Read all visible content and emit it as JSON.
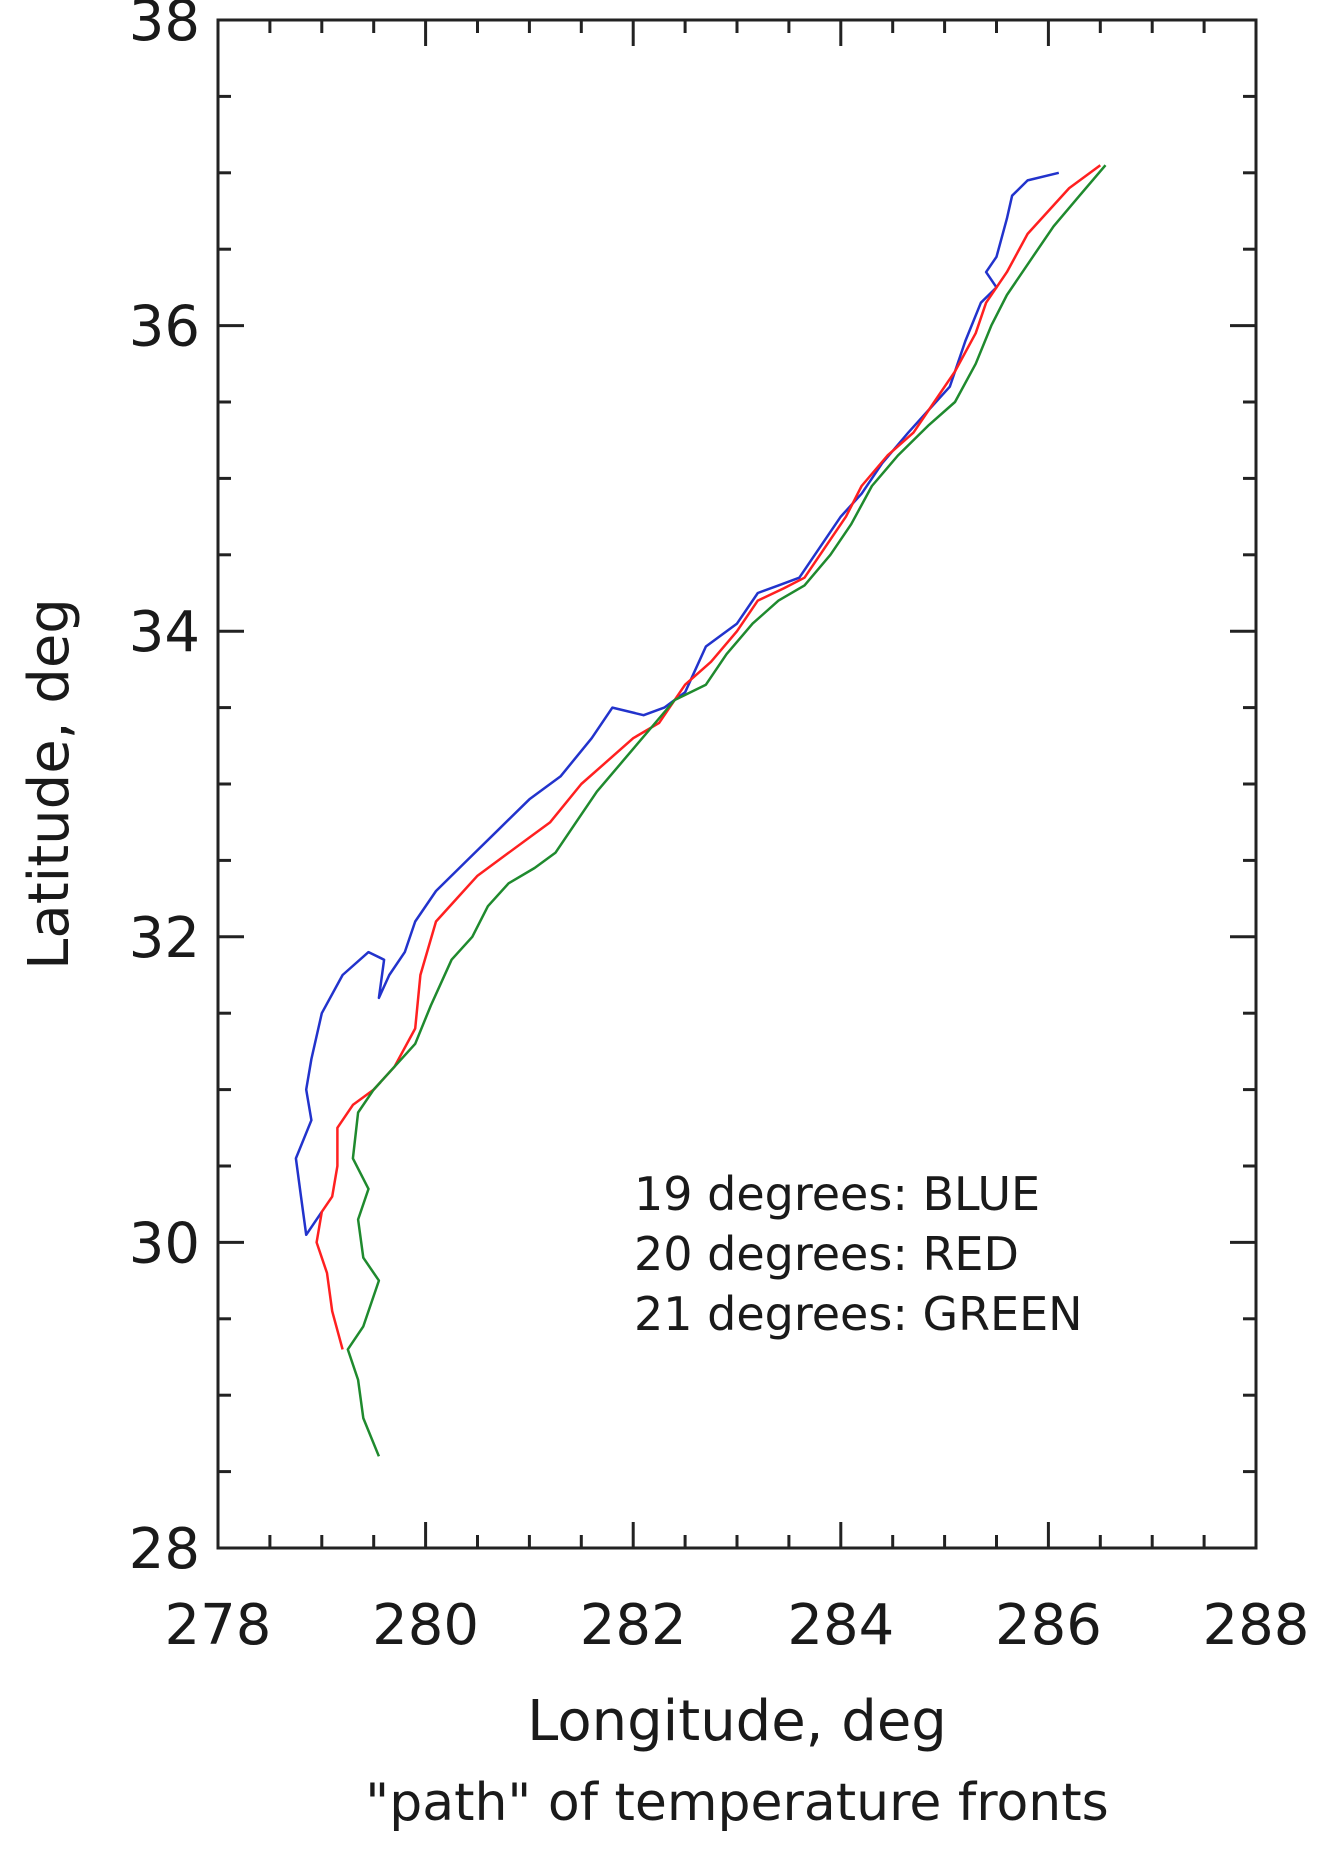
{
  "chart_data": {
    "type": "line",
    "title": "",
    "xlabel": "Longitude, deg",
    "ylabel": "Latitude, deg",
    "caption": "\"path\" of temperature fronts",
    "xlim": [
      278,
      288
    ],
    "ylim": [
      28,
      38
    ],
    "xticks": [
      "278",
      "280",
      "282",
      "284",
      "286",
      "288"
    ],
    "yticks": [
      "28",
      "30",
      "32",
      "34",
      "36",
      "38"
    ],
    "grid": false,
    "legend_position": "lower-right",
    "legend": [
      "19 degrees: BLUE",
      "20 degrees: RED",
      "21 degrees: GREEN"
    ],
    "series": [
      {
        "color": "#2233cc",
        "points": [
          [
            286.1,
            37.0
          ],
          [
            285.8,
            36.95
          ],
          [
            285.65,
            36.85
          ],
          [
            285.6,
            36.7
          ],
          [
            285.5,
            36.45
          ],
          [
            285.4,
            36.35
          ],
          [
            285.5,
            36.25
          ],
          [
            285.35,
            36.15
          ],
          [
            285.2,
            35.9
          ],
          [
            285.05,
            35.6
          ],
          [
            284.85,
            35.45
          ],
          [
            284.65,
            35.3
          ],
          [
            284.4,
            35.1
          ],
          [
            284.2,
            34.9
          ],
          [
            284.0,
            34.75
          ],
          [
            283.8,
            34.55
          ],
          [
            283.6,
            34.35
          ],
          [
            283.4,
            34.3
          ],
          [
            283.2,
            34.25
          ],
          [
            283.0,
            34.05
          ],
          [
            282.7,
            33.9
          ],
          [
            282.5,
            33.6
          ],
          [
            282.3,
            33.5
          ],
          [
            282.1,
            33.45
          ],
          [
            281.8,
            33.5
          ],
          [
            281.6,
            33.3
          ],
          [
            281.3,
            33.05
          ],
          [
            281.0,
            32.9
          ],
          [
            280.7,
            32.7
          ],
          [
            280.4,
            32.5
          ],
          [
            280.1,
            32.3
          ],
          [
            279.9,
            32.1
          ],
          [
            279.8,
            31.9
          ],
          [
            279.65,
            31.75
          ],
          [
            279.55,
            31.6
          ],
          [
            279.6,
            31.85
          ],
          [
            279.45,
            31.9
          ],
          [
            279.2,
            31.75
          ],
          [
            279.0,
            31.5
          ],
          [
            278.9,
            31.2
          ],
          [
            278.85,
            31.0
          ],
          [
            278.9,
            30.8
          ],
          [
            278.75,
            30.55
          ],
          [
            278.8,
            30.3
          ],
          [
            278.85,
            30.05
          ],
          [
            279.0,
            30.2
          ]
        ]
      },
      {
        "color": "#ff2020",
        "points": [
          [
            286.5,
            37.05
          ],
          [
            286.2,
            36.9
          ],
          [
            286.0,
            36.75
          ],
          [
            285.8,
            36.6
          ],
          [
            285.6,
            36.35
          ],
          [
            285.4,
            36.15
          ],
          [
            285.3,
            35.95
          ],
          [
            285.1,
            35.7
          ],
          [
            284.9,
            35.5
          ],
          [
            284.7,
            35.3
          ],
          [
            284.45,
            35.15
          ],
          [
            284.2,
            34.95
          ],
          [
            284.05,
            34.75
          ],
          [
            283.85,
            34.55
          ],
          [
            283.65,
            34.35
          ],
          [
            283.45,
            34.28
          ],
          [
            283.2,
            34.2
          ],
          [
            283.0,
            34.0
          ],
          [
            282.75,
            33.8
          ],
          [
            282.5,
            33.65
          ],
          [
            282.25,
            33.4
          ],
          [
            282.0,
            33.3
          ],
          [
            281.75,
            33.15
          ],
          [
            281.5,
            33.0
          ],
          [
            281.2,
            32.75
          ],
          [
            281.0,
            32.65
          ],
          [
            280.8,
            32.55
          ],
          [
            280.5,
            32.4
          ],
          [
            280.3,
            32.25
          ],
          [
            280.1,
            32.1
          ],
          [
            279.95,
            31.75
          ],
          [
            279.9,
            31.4
          ],
          [
            279.7,
            31.15
          ],
          [
            279.5,
            31.0
          ],
          [
            279.3,
            30.9
          ],
          [
            279.15,
            30.75
          ],
          [
            279.15,
            30.5
          ],
          [
            279.1,
            30.3
          ],
          [
            279.0,
            30.2
          ],
          [
            278.95,
            30.0
          ],
          [
            279.05,
            29.8
          ],
          [
            279.1,
            29.55
          ],
          [
            279.2,
            29.3
          ]
        ]
      },
      {
        "color": "#1f8a2e",
        "points": [
          [
            286.55,
            37.05
          ],
          [
            286.3,
            36.85
          ],
          [
            286.05,
            36.65
          ],
          [
            285.85,
            36.45
          ],
          [
            285.6,
            36.2
          ],
          [
            285.45,
            36.0
          ],
          [
            285.3,
            35.75
          ],
          [
            285.1,
            35.5
          ],
          [
            284.85,
            35.35
          ],
          [
            284.55,
            35.15
          ],
          [
            284.3,
            34.95
          ],
          [
            284.1,
            34.7
          ],
          [
            283.9,
            34.5
          ],
          [
            283.65,
            34.3
          ],
          [
            283.4,
            34.2
          ],
          [
            283.15,
            34.05
          ],
          [
            282.9,
            33.85
          ],
          [
            282.7,
            33.65
          ],
          [
            282.4,
            33.55
          ],
          [
            282.15,
            33.35
          ],
          [
            281.9,
            33.15
          ],
          [
            281.65,
            32.95
          ],
          [
            281.45,
            32.75
          ],
          [
            281.25,
            32.55
          ],
          [
            281.05,
            32.45
          ],
          [
            280.8,
            32.35
          ],
          [
            280.6,
            32.2
          ],
          [
            280.45,
            32.0
          ],
          [
            280.25,
            31.85
          ],
          [
            280.05,
            31.55
          ],
          [
            279.9,
            31.3
          ],
          [
            279.7,
            31.15
          ],
          [
            279.5,
            31.0
          ],
          [
            279.35,
            30.85
          ],
          [
            279.3,
            30.55
          ],
          [
            279.45,
            30.35
          ],
          [
            279.35,
            30.15
          ],
          [
            279.4,
            29.9
          ],
          [
            279.55,
            29.75
          ],
          [
            279.4,
            29.45
          ],
          [
            279.25,
            29.3
          ],
          [
            279.35,
            29.1
          ],
          [
            279.4,
            28.85
          ],
          [
            279.55,
            28.6
          ]
        ]
      }
    ]
  }
}
